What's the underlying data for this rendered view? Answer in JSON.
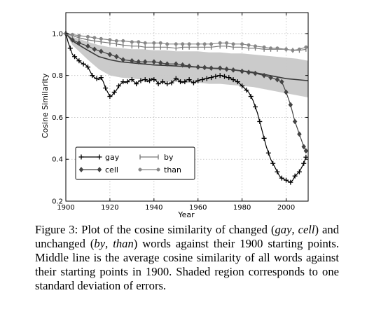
{
  "chart_data": {
    "type": "line",
    "xlabel": "Year",
    "ylabel": "Cosine Similarity",
    "xlim": [
      1900,
      2010
    ],
    "ylim": [
      0.2,
      1.1
    ],
    "grid": true,
    "x_ticks": [
      1900,
      1920,
      1940,
      1960,
      1980,
      2000
    ],
    "y_ticks": [
      0.2,
      0.4,
      0.6,
      0.8,
      1.0
    ],
    "x_tick_labels": [
      "1900",
      "1920",
      "1940",
      "1960",
      "1980",
      "2000"
    ],
    "y_tick_labels": [
      "0.2",
      "0.4",
      "0.6",
      "0.8",
      "1.0"
    ],
    "legend_position": "lower-left",
    "shaded_band": {
      "x": [
        1900,
        1903,
        1906,
        1910,
        1915,
        1920,
        1925,
        1930,
        1935,
        1940,
        1945,
        1950,
        1955,
        1960,
        1965,
        1970,
        1975,
        1980,
        1985,
        1990,
        1995,
        2000,
        2005,
        2010
      ],
      "upper": [
        1.0,
        0.985,
        0.975,
        0.96,
        0.945,
        0.935,
        0.93,
        0.925,
        0.925,
        0.92,
        0.92,
        0.915,
        0.915,
        0.915,
        0.91,
        0.91,
        0.905,
        0.905,
        0.9,
        0.895,
        0.89,
        0.885,
        0.88,
        0.87
      ],
      "lower": [
        1.0,
        0.945,
        0.915,
        0.875,
        0.83,
        0.8,
        0.79,
        0.785,
        0.78,
        0.775,
        0.77,
        0.77,
        0.765,
        0.765,
        0.76,
        0.76,
        0.755,
        0.75,
        0.745,
        0.735,
        0.725,
        0.715,
        0.705,
        0.695
      ]
    },
    "mean_line": {
      "x": [
        1900,
        1903,
        1906,
        1910,
        1915,
        1920,
        1925,
        1930,
        1935,
        1940,
        1945,
        1950,
        1955,
        1960,
        1965,
        1970,
        1975,
        1980,
        1985,
        1990,
        1995,
        2000,
        2005,
        2010
      ],
      "y": [
        1.0,
        0.965,
        0.945,
        0.92,
        0.89,
        0.875,
        0.865,
        0.86,
        0.855,
        0.85,
        0.848,
        0.845,
        0.842,
        0.84,
        0.835,
        0.832,
        0.828,
        0.822,
        0.815,
        0.805,
        0.795,
        0.785,
        0.78,
        0.775
      ]
    },
    "series": [
      {
        "name": "gay",
        "marker": "plus",
        "color": "#000000",
        "x": [
          1900,
          1901,
          1902,
          1903,
          1904,
          1905,
          1906,
          1907,
          1908,
          1909,
          1910,
          1911,
          1912,
          1913,
          1914,
          1915,
          1916,
          1917,
          1918,
          1919,
          1920,
          1921,
          1922,
          1923,
          1924,
          1925,
          1926,
          1927,
          1928,
          1929,
          1930,
          1931,
          1932,
          1933,
          1934,
          1935,
          1936,
          1937,
          1938,
          1939,
          1940,
          1941,
          1942,
          1943,
          1944,
          1945,
          1946,
          1947,
          1948,
          1949,
          1950,
          1951,
          1952,
          1953,
          1954,
          1955,
          1956,
          1957,
          1958,
          1959,
          1960,
          1961,
          1962,
          1963,
          1964,
          1965,
          1966,
          1967,
          1968,
          1969,
          1970,
          1971,
          1972,
          1973,
          1974,
          1975,
          1976,
          1977,
          1978,
          1979,
          1980,
          1981,
          1982,
          1983,
          1984,
          1985,
          1986,
          1987,
          1988,
          1989,
          1990,
          1991,
          1992,
          1993,
          1994,
          1995,
          1996,
          1997,
          1998,
          1999,
          2000,
          2001,
          2002,
          2003,
          2004,
          2005,
          2006,
          2007,
          2008,
          2009
        ],
        "y": [
          1.0,
          0.96,
          0.93,
          0.9,
          0.89,
          0.88,
          0.87,
          0.86,
          0.855,
          0.85,
          0.84,
          0.82,
          0.8,
          0.79,
          0.785,
          0.78,
          0.79,
          0.77,
          0.74,
          0.72,
          0.7,
          0.705,
          0.72,
          0.73,
          0.75,
          0.76,
          0.77,
          0.765,
          0.77,
          0.78,
          0.78,
          0.77,
          0.76,
          0.77,
          0.775,
          0.78,
          0.78,
          0.77,
          0.775,
          0.785,
          0.78,
          0.775,
          0.76,
          0.765,
          0.77,
          0.765,
          0.76,
          0.76,
          0.765,
          0.775,
          0.785,
          0.78,
          0.77,
          0.765,
          0.77,
          0.78,
          0.78,
          0.77,
          0.765,
          0.77,
          0.775,
          0.78,
          0.78,
          0.785,
          0.785,
          0.79,
          0.79,
          0.795,
          0.795,
          0.8,
          0.8,
          0.8,
          0.795,
          0.79,
          0.79,
          0.785,
          0.78,
          0.775,
          0.77,
          0.76,
          0.75,
          0.74,
          0.73,
          0.72,
          0.7,
          0.68,
          0.65,
          0.62,
          0.58,
          0.54,
          0.5,
          0.46,
          0.43,
          0.4,
          0.38,
          0.36,
          0.34,
          0.32,
          0.31,
          0.305,
          0.3,
          0.295,
          0.29,
          0.3,
          0.32,
          0.33,
          0.34,
          0.36,
          0.38,
          0.41
        ]
      },
      {
        "name": "cell",
        "marker": "diamond",
        "color": "#444444",
        "x": [
          1900,
          1903,
          1906,
          1910,
          1913,
          1916,
          1920,
          1923,
          1926,
          1930,
          1933,
          1936,
          1940,
          1943,
          1946,
          1950,
          1953,
          1956,
          1960,
          1963,
          1966,
          1970,
          1973,
          1976,
          1980,
          1983,
          1986,
          1990,
          1993,
          1996,
          1998,
          2000,
          2002,
          2004,
          2006,
          2008,
          2009
        ],
        "y": [
          1.0,
          0.97,
          0.955,
          0.94,
          0.925,
          0.915,
          0.9,
          0.89,
          0.875,
          0.87,
          0.865,
          0.865,
          0.865,
          0.86,
          0.855,
          0.855,
          0.85,
          0.845,
          0.84,
          0.838,
          0.835,
          0.835,
          0.83,
          0.826,
          0.82,
          0.815,
          0.81,
          0.8,
          0.79,
          0.78,
          0.77,
          0.72,
          0.66,
          0.58,
          0.52,
          0.46,
          0.44
        ]
      },
      {
        "name": "by",
        "marker": "vline",
        "color": "#777777",
        "x": [
          1900,
          1903,
          1906,
          1910,
          1913,
          1916,
          1920,
          1923,
          1926,
          1930,
          1933,
          1936,
          1940,
          1943,
          1946,
          1950,
          1953,
          1956,
          1960,
          1963,
          1966,
          1970,
          1973,
          1976,
          1980,
          1983,
          1986,
          1990,
          1993,
          1996,
          2000,
          2003,
          2006,
          2009
        ],
        "y": [
          1.0,
          0.99,
          0.98,
          0.97,
          0.965,
          0.96,
          0.955,
          0.95,
          0.945,
          0.94,
          0.94,
          0.935,
          0.935,
          0.935,
          0.935,
          0.93,
          0.935,
          0.935,
          0.935,
          0.935,
          0.935,
          0.94,
          0.94,
          0.935,
          0.935,
          0.93,
          0.93,
          0.925,
          0.925,
          0.925,
          0.925,
          0.92,
          0.92,
          0.925
        ]
      },
      {
        "name": "than",
        "marker": "circle",
        "color": "#888888",
        "x": [
          1900,
          1903,
          1906,
          1910,
          1913,
          1916,
          1920,
          1923,
          1926,
          1930,
          1933,
          1936,
          1940,
          1943,
          1946,
          1950,
          1953,
          1956,
          1960,
          1963,
          1966,
          1970,
          1973,
          1976,
          1980,
          1983,
          1986,
          1990,
          1993,
          1996,
          2000,
          2003,
          2006,
          2009
        ],
        "y": [
          1.0,
          0.995,
          0.99,
          0.985,
          0.98,
          0.975,
          0.97,
          0.965,
          0.965,
          0.96,
          0.96,
          0.955,
          0.955,
          0.955,
          0.95,
          0.95,
          0.95,
          0.95,
          0.95,
          0.95,
          0.95,
          0.955,
          0.955,
          0.95,
          0.95,
          0.945,
          0.94,
          0.935,
          0.93,
          0.93,
          0.925,
          0.92,
          0.925,
          0.935
        ]
      }
    ]
  },
  "caption": {
    "prefix": "Figure 3: Plot of the cosine similarity of changed (",
    "em1": "gay",
    "sep1": ", ",
    "em2": "cell",
    "mid": ") and unchanged (",
    "em3": "by",
    "sep2": ", ",
    "em4": "than",
    "suffix": ") words against their 1900 starting points.  Middle line is the average cosine similarity of all words against their starting points in 1900.  Shaded region corresponds to one standard deviation of errors."
  }
}
